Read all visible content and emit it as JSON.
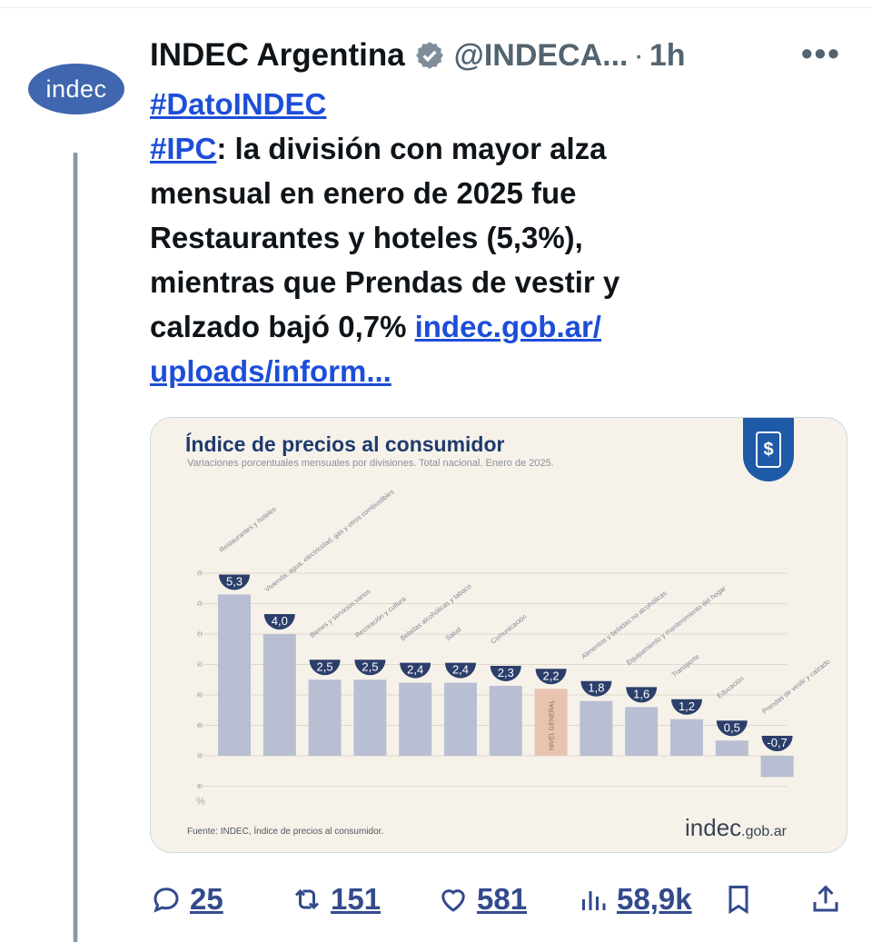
{
  "tweet": {
    "avatar_text": "indec",
    "display_name": "INDEC Argentina",
    "handle": "@INDECA...",
    "separator": "·",
    "time": "1h",
    "more": "•••",
    "text_lines": {
      "l1_hashtag": "#DatoINDEC",
      "l2_hashtag": "#IPC",
      "l2_rest": ": la división con mayor alza",
      "l3": "mensual en enero de 2025 fue",
      "l4": "Restaurantes y hoteles (5,3%),",
      "l5": "mientras que Prendas de vestir y",
      "l6_text": "calzado bajó 0,7% ",
      "l6_link": "indec.gob.ar/",
      "l7_link": "uploads/inform..."
    }
  },
  "media": {
    "title": "Índice de precios al consumidor",
    "subtitle": "Variaciones porcentuales mensuales por divisiones. Total nacional. Enero de 2025.",
    "badge_symbol": "$",
    "source": "Fuente: INDEC, Índice de precios al consumidor.",
    "brand_main": "indec",
    "brand_suffix": ".gob.ar"
  },
  "actions": {
    "replies": "25",
    "reposts": "151",
    "likes": "581",
    "views": "58,9k"
  },
  "colors": {
    "bar": "#b8bfd3",
    "bar_highlight": "#e8c4b0",
    "bubble": "#2c3f6b",
    "link": "#1d4ed8",
    "action_count": "#334a8c"
  },
  "chart_data": {
    "type": "bar",
    "title": "Índice de precios al consumidor",
    "ylabel": "%",
    "ylim": [
      -1,
      6
    ],
    "yticks": [
      6,
      5,
      4,
      3,
      2,
      1,
      0,
      -1
    ],
    "categories": [
      "Restaurantes y hoteles",
      "Vivienda, agua, electricidad, gas y otros combustibles",
      "Bienes y servicios varios",
      "Recreación y cultura",
      "Bebidas alcohólicas y tabaco",
      "Salud",
      "Comunicación",
      "NIVEL GENERAL",
      "Alimentos y bebidas no alcohólicas",
      "Equipamiento y mantenimiento del hogar",
      "Transporte",
      "Educación",
      "Prendas de vestir y calzado"
    ],
    "values": [
      5.3,
      4.0,
      2.5,
      2.5,
      2.4,
      2.4,
      2.3,
      2.2,
      1.8,
      1.6,
      1.2,
      0.5,
      -0.7
    ],
    "labels": [
      "5,3",
      "4,0",
      "2,5",
      "2,5",
      "2,4",
      "2,4",
      "2,3",
      "2,2",
      "1,8",
      "1,6",
      "1,2",
      "0,5",
      "-0,7"
    ],
    "highlight_index": 7
  }
}
